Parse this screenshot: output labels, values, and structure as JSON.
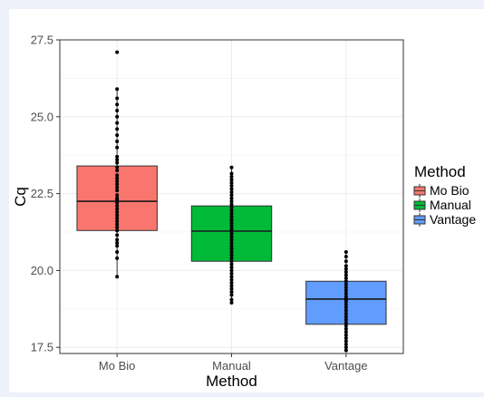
{
  "chart_data": {
    "type": "boxplot",
    "xlabel": "Method",
    "ylabel": "Cq",
    "ylim": [
      17.3,
      27.5
    ],
    "y_ticks": [
      17.5,
      20.0,
      22.5,
      25.0,
      27.5
    ],
    "y_tick_labels": [
      "17.5",
      "20.0",
      "22.5",
      "25.0",
      "27.5"
    ],
    "grid": true,
    "legend": {
      "title": "Method",
      "position": "right"
    },
    "categories": [
      "Mo Bio",
      "Manual",
      "Vantage"
    ],
    "series": [
      {
        "name": "Mo Bio",
        "color": "#F8766D",
        "q1": 21.3,
        "median": 22.25,
        "q3": 23.4,
        "whisker_low": 19.8,
        "whisker_high": 25.9,
        "points": [
          19.8,
          20.4,
          20.6,
          20.8,
          20.9,
          21.0,
          21.15,
          21.3,
          21.4,
          21.5,
          21.6,
          21.7,
          21.8,
          21.9,
          22.0,
          22.1,
          22.2,
          22.3,
          22.35,
          22.45,
          22.6,
          22.7,
          22.8,
          22.9,
          23.0,
          23.1,
          23.25,
          23.35,
          23.5,
          23.6,
          23.7,
          24.0,
          24.2,
          24.4,
          24.6,
          24.8,
          25.0,
          25.2,
          25.4,
          25.6,
          25.9,
          27.1
        ]
      },
      {
        "name": "Manual",
        "color": "#00BA38",
        "q1": 20.3,
        "median": 21.28,
        "q3": 22.1,
        "whisker_low": 18.95,
        "whisker_high": 23.35,
        "points": [
          18.95,
          19.05,
          19.2,
          19.3,
          19.4,
          19.5,
          19.6,
          19.7,
          19.8,
          19.9,
          20.0,
          20.1,
          20.2,
          20.3,
          20.4,
          20.5,
          20.6,
          20.7,
          20.8,
          20.9,
          21.0,
          21.1,
          21.2,
          21.28,
          21.35,
          21.45,
          21.55,
          21.65,
          21.75,
          21.85,
          21.95,
          22.05,
          22.15,
          22.25,
          22.35,
          22.45,
          22.55,
          22.65,
          22.75,
          22.85,
          22.95,
          23.05,
          23.15,
          23.35
        ]
      },
      {
        "name": "Vantage",
        "color": "#619CFF",
        "q1": 18.25,
        "median": 19.07,
        "q3": 19.65,
        "whisker_low": 17.4,
        "whisker_high": 20.6,
        "points": [
          17.4,
          17.5,
          17.6,
          17.7,
          17.8,
          17.9,
          18.0,
          18.1,
          18.2,
          18.3,
          18.4,
          18.5,
          18.6,
          18.7,
          18.8,
          18.9,
          19.0,
          19.07,
          19.15,
          19.25,
          19.35,
          19.45,
          19.55,
          19.65,
          19.75,
          19.85,
          19.95,
          20.05,
          20.15,
          20.3,
          20.45,
          20.6
        ]
      }
    ]
  }
}
